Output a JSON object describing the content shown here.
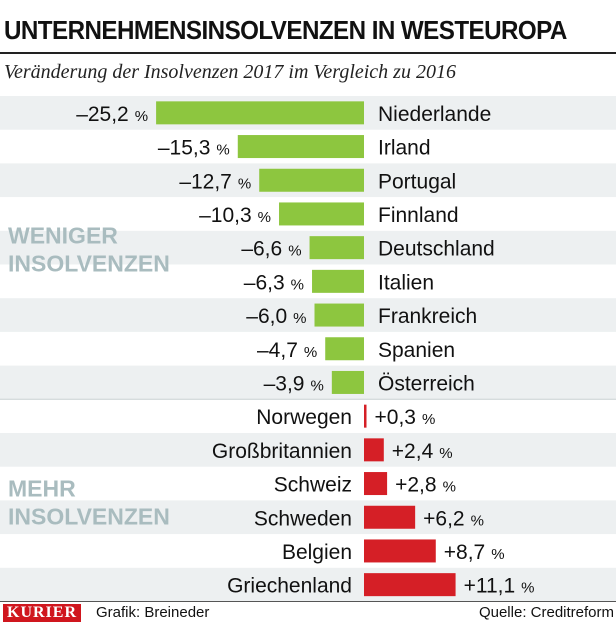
{
  "title": "UNTERNEHMENSINSOLVENZEN IN WESTEUROPA",
  "subtitle": "Veränderung der Insolvenzen 2017 im Vergleich zu 2016",
  "colors": {
    "negative": "#8dc63f",
    "positive": "#d51f26",
    "group_label": "#a9bcbf",
    "stripe": "#edf0f1"
  },
  "chart_data": {
    "type": "bar",
    "orientation": "horizontal",
    "unit": "%",
    "groups": [
      {
        "label_line1": "WENIGER",
        "label_line2": "INSOLVENZEN"
      },
      {
        "label_line1": "MEHR",
        "label_line2": "INSOLVENZEN"
      }
    ],
    "rows": [
      {
        "category": "Niederlande",
        "value": -25.2,
        "label": "–25,2",
        "group": 0
      },
      {
        "category": "Irland",
        "value": -15.3,
        "label": "–15,3",
        "group": 0
      },
      {
        "category": "Portugal",
        "value": -12.7,
        "label": "–12,7",
        "group": 0
      },
      {
        "category": "Finnland",
        "value": -10.3,
        "label": "–10,3",
        "group": 0
      },
      {
        "category": "Deutschland",
        "value": -6.6,
        "label": "–6,6",
        "group": 0
      },
      {
        "category": "Italien",
        "value": -6.3,
        "label": "–6,3",
        "group": 0
      },
      {
        "category": "Frankreich",
        "value": -6.0,
        "label": "–6,0",
        "group": 0
      },
      {
        "category": "Spanien",
        "value": -4.7,
        "label": "–4,7",
        "group": 0
      },
      {
        "category": "Österreich",
        "value": -3.9,
        "label": "–3,9",
        "group": 0
      },
      {
        "category": "Norwegen",
        "value": 0.3,
        "label": "+0,3",
        "group": 1
      },
      {
        "category": "Großbritannien",
        "value": 2.4,
        "label": "+2,4",
        "group": 1
      },
      {
        "category": "Schweiz",
        "value": 2.8,
        "label": "+2,8",
        "group": 1
      },
      {
        "category": "Schweden",
        "value": 6.2,
        "label": "+6,2",
        "group": 1
      },
      {
        "category": "Belgien",
        "value": 8.7,
        "label": "+8,7",
        "group": 1
      },
      {
        "category": "Griechenland",
        "value": 11.1,
        "label": "+11,1",
        "group": 1
      }
    ]
  },
  "footer": {
    "logo": "KURIER",
    "credit": "Grafik: Breineder",
    "source": "Quelle: Creditreform"
  }
}
